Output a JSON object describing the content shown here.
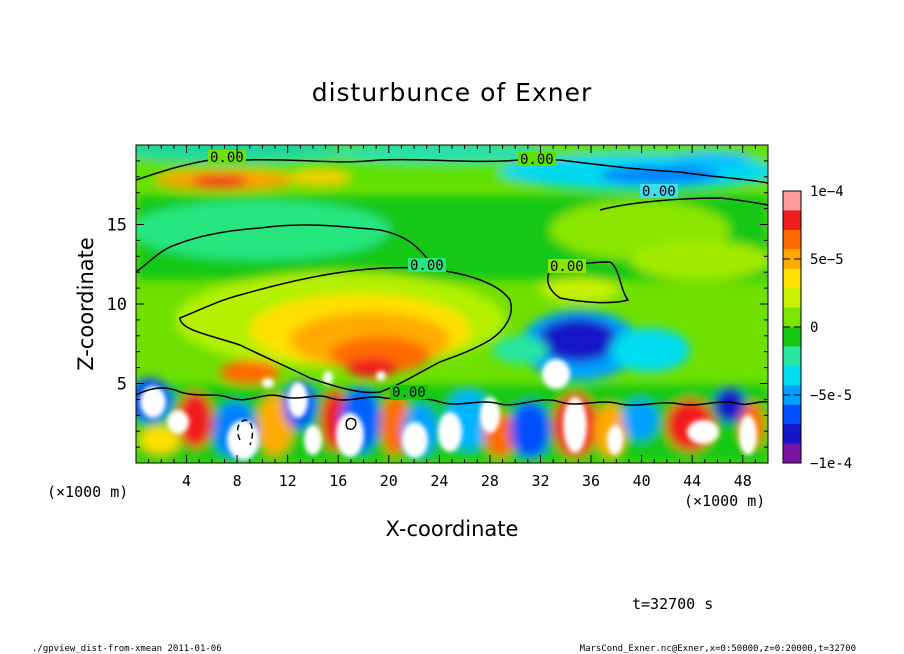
{
  "chart_data": {
    "type": "heatmap",
    "title": "disturbunce of Exner",
    "xlabel": "X-coordinate",
    "ylabel": "Z-coordinate",
    "x_unit": "(×1000 m)",
    "z_unit": "(×1000 m)",
    "xlim": [
      0,
      50
    ],
    "zlim": [
      0,
      20
    ],
    "x_ticks": [
      4,
      8,
      12,
      16,
      20,
      24,
      28,
      32,
      36,
      40,
      44,
      48
    ],
    "z_ticks": [
      5,
      10,
      15
    ],
    "colorbar": {
      "range": [
        -0.0001,
        0.0001
      ],
      "ticks": [
        {
          "value": 0.0001,
          "label": "1e-4"
        },
        {
          "value": 5e-05,
          "label": "5e-5"
        },
        {
          "value": 0,
          "label": "0"
        },
        {
          "value": -5e-05,
          "label": "-5e-5"
        },
        {
          "value": -0.0001,
          "label": "-1e-4"
        }
      ],
      "colors_high_to_low": [
        "#ff9c9c",
        "#f01e1e",
        "#ff6a00",
        "#ffaa00",
        "#ffe000",
        "#c8f000",
        "#7de600",
        "#14c814",
        "#28e6a0",
        "#00dcf0",
        "#00a0ff",
        "#0050ff",
        "#1414c8",
        "#7814a0"
      ]
    },
    "contour_labels": [
      "0.00",
      "0.00",
      "0.00",
      "0.00",
      "0.00",
      "0.00"
    ],
    "time_label": "t=32700 s"
  },
  "footer": {
    "left": "./gpview_dist-from-xmean  2011-01-06",
    "right": "MarsCond_Exner.nc@Exner,x=0:50000,z=0:20000,t=32700"
  }
}
